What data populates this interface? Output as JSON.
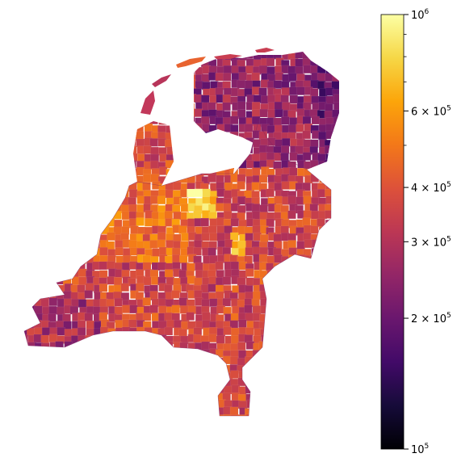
{
  "chart_data": {
    "type": "heatmap",
    "subtype": "choropleth-map",
    "region": "Netherlands",
    "colormap": "inferno",
    "scale": "log",
    "colorbar": {
      "range": [
        100000,
        1000000
      ],
      "orientation": "vertical",
      "placement": "right",
      "labeled_ticks": [
        {
          "value": 1000000,
          "base": "10",
          "exp": "6"
        },
        {
          "value": 600000,
          "base": "6 × 10",
          "exp": "5"
        },
        {
          "value": 400000,
          "base": "4 × 10",
          "exp": "5"
        },
        {
          "value": 300000,
          "base": "3 × 10",
          "exp": "5"
        },
        {
          "value": 200000,
          "base": "2 × 10",
          "exp": "5"
        },
        {
          "value": 100000,
          "base": "10",
          "exp": "5"
        }
      ],
      "minor_ticks": [
        500000,
        700000,
        800000,
        900000
      ]
    },
    "axes_visible": false,
    "grid": false
  }
}
